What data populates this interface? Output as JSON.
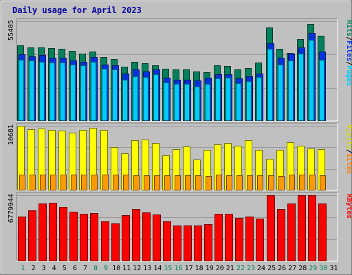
{
  "title": "Daily usage for April 2023",
  "chart_data": {
    "type": "bar",
    "title": "Daily usage for April 2023",
    "categories": [
      "1",
      "2",
      "3",
      "4",
      "5",
      "6",
      "7",
      "8",
      "9",
      "10",
      "11",
      "12",
      "13",
      "14",
      "15",
      "16",
      "17",
      "18",
      "19",
      "20",
      "21",
      "22",
      "23",
      "24",
      "25",
      "26",
      "27",
      "28",
      "29",
      "30",
      "31"
    ],
    "weekend_days": [
      1,
      8,
      9,
      15,
      16,
      22,
      23,
      29,
      30
    ],
    "panels": [
      {
        "name": "hits-files-pages",
        "axis_max_label": "55405",
        "ylim": [
          0,
          55405
        ],
        "legend": [
          {
            "label": "Pages",
            "color": "#00ccff"
          },
          {
            "label": "/",
            "color": "#000000"
          },
          {
            "label": "Files",
            "color": "#0033ee"
          },
          {
            "label": "/",
            "color": "#000000"
          },
          {
            "label": "Hits",
            "color": "#008060"
          }
        ],
        "series": [
          {
            "name": "Hits",
            "color": "#00805c",
            "values": [
              42000,
              41000,
              41000,
              40500,
              40000,
              39000,
              37500,
              38500,
              35500,
              34500,
              30000,
              33000,
              32000,
              31000,
              29000,
              28500,
              28500,
              27500,
              27000,
              31000,
              30500,
              28500,
              29500,
              32500,
              52000,
              40000,
              38000,
              45500,
              54000,
              47500,
              0
            ]
          },
          {
            "name": "Files",
            "color": "#0033dd",
            "values": [
              37000,
              36000,
              36500,
              35000,
              35000,
              33500,
              33000,
              35500,
              31500,
              31000,
              26500,
              28500,
              27500,
              28500,
              24000,
              23000,
              23000,
              22500,
              24000,
              26000,
              26000,
              23500,
              25000,
              26500,
              43000,
              35000,
              37500,
              41000,
              49000,
              38500,
              0
            ]
          },
          {
            "name": "Pages",
            "color": "#00ccff",
            "values": [
              34000,
              33500,
              33000,
              32500,
              32500,
              31500,
              31000,
              33000,
              29000,
              28500,
              23000,
              25000,
              24500,
              26000,
              21500,
              20500,
              20500,
              19000,
              20500,
              23500,
              24000,
              21000,
              22000,
              24500,
              40000,
              31500,
              33500,
              37500,
              45000,
              34000,
              0
            ]
          }
        ]
      },
      {
        "name": "visits-sites",
        "axis_max_label": "10681",
        "ylim": [
          0,
          10681
        ],
        "legend": [
          {
            "label": "Sites",
            "color": "#ff8000"
          },
          {
            "label": "/",
            "color": "#000000"
          },
          {
            "label": "Visits",
            "color": "#d8d800"
          }
        ],
        "series": [
          {
            "name": "Visits",
            "color": "#ffff00",
            "values": [
              10681,
              10100,
              10250,
              10000,
              9900,
              9550,
              10050,
              10300,
              9950,
              7200,
              6100,
              8250,
              8450,
              7800,
              5750,
              6800,
              7250,
              5100,
              6750,
              7650,
              7800,
              7400,
              8300,
              6750,
              5200,
              6750,
              7950,
              7400,
              6900,
              6800,
              0
            ]
          },
          {
            "name": "Sites",
            "color": "#ff9900",
            "values": [
              2600,
              2600,
              2600,
              2600,
              2600,
              2600,
              2600,
              2600,
              2600,
              2600,
              2600,
              2550,
              2550,
              2500,
              2550,
              2550,
              2500,
              2450,
              2400,
              2600,
              2500,
              2500,
              2550,
              2500,
              2500,
              2400,
              2600,
              2600,
              2650,
              2450,
              0
            ]
          }
        ]
      },
      {
        "name": "kbytes",
        "axis_max_label": "6779944",
        "ylim": [
          0,
          6779944
        ],
        "legend": [
          {
            "label": "KBytes",
            "color": "#ff0000"
          }
        ],
        "series": [
          {
            "name": "KBytes",
            "color": "#ff0000",
            "values": [
              4600000,
              5200000,
              5900000,
              6000000,
              5600000,
              5100000,
              4850000,
              4950000,
              4100000,
              3900000,
              4750000,
              5400000,
              5000000,
              4800000,
              4100000,
              3650000,
              3650000,
              3650000,
              3800000,
              4850000,
              4900000,
              4450000,
              4600000,
              4350000,
              6779944,
              5400000,
              5900000,
              6750000,
              6779944,
              5950000,
              0
            ]
          }
        ]
      }
    ]
  }
}
